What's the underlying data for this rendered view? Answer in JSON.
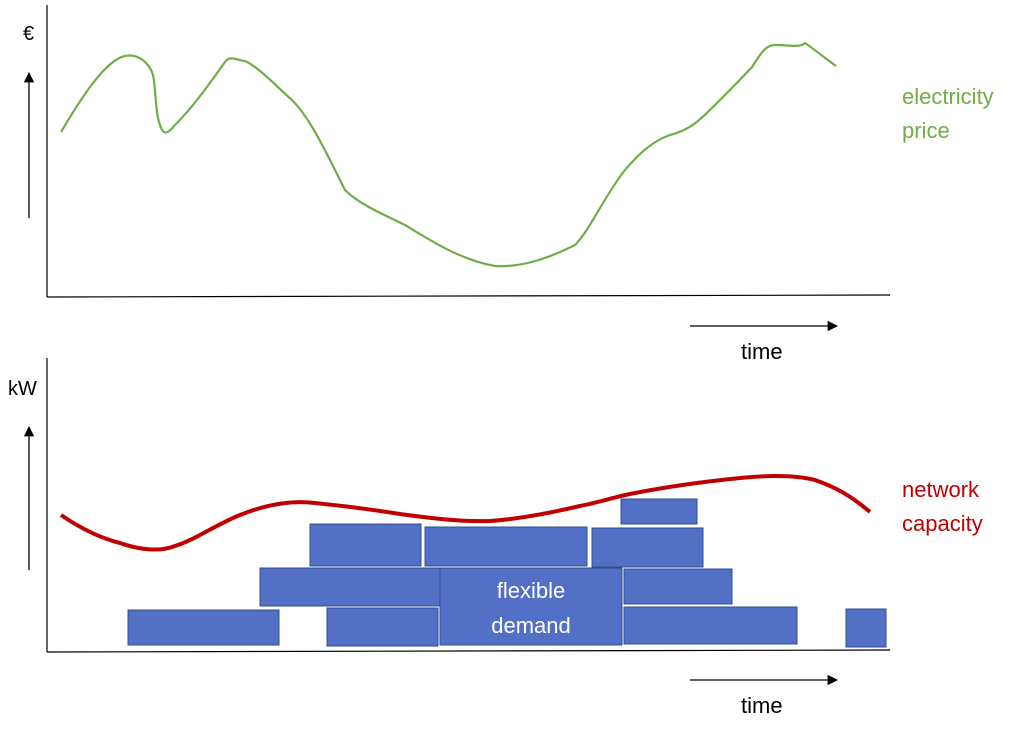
{
  "colors": {
    "price": "#70ad47",
    "capacity": "#c00000",
    "block_fill": "#5470c6",
    "block_stroke": "#2f4f8f",
    "axis": "#000000",
    "block_text": "#ffffff"
  },
  "top_panel": {
    "y_unit": "€",
    "series_label_line1": "electricity",
    "series_label_line2": "price",
    "time_label": "time"
  },
  "bottom_panel": {
    "y_unit": "kW",
    "series_label_line1": "network",
    "series_label_line2": "capacity",
    "time_label": "time",
    "block_label_line1": "flexible",
    "block_label_line2": "demand"
  }
}
